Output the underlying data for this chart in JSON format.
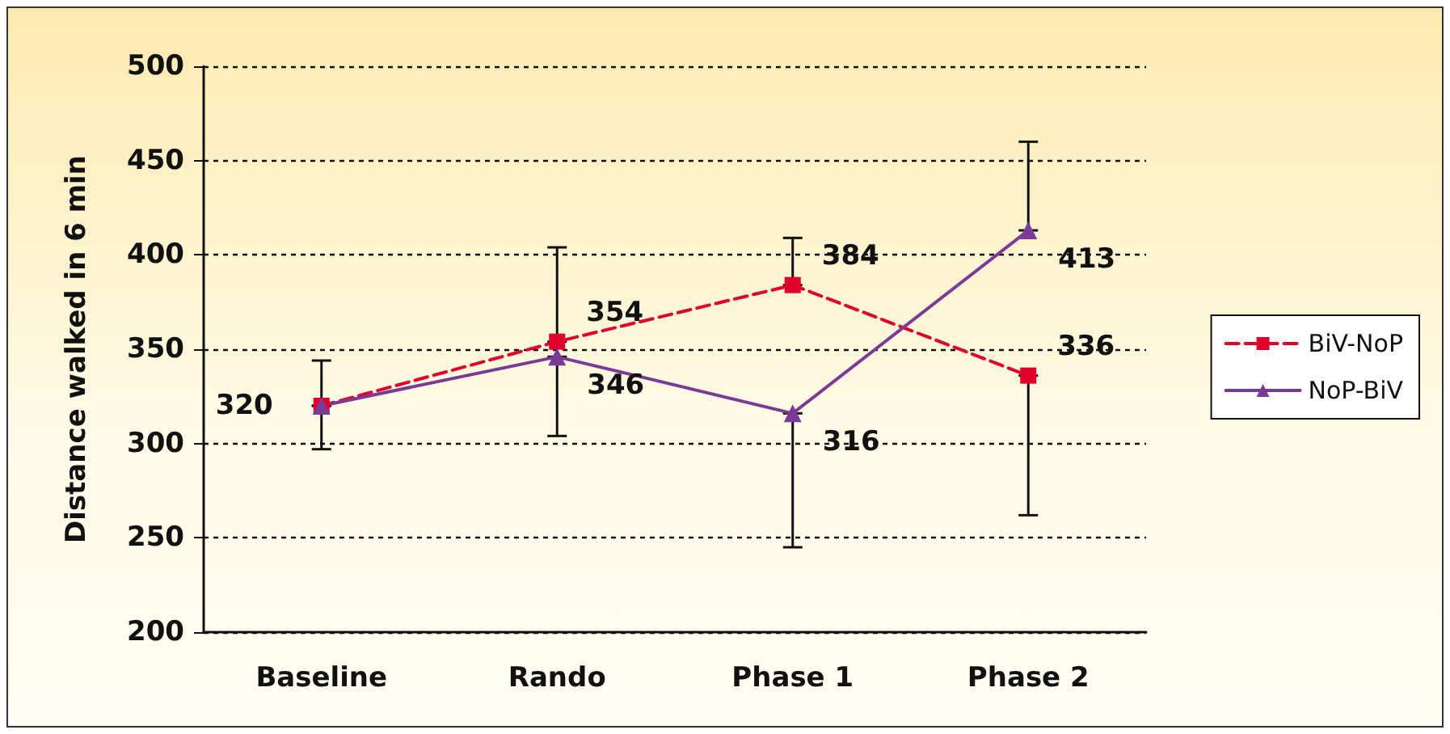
{
  "chart_data": {
    "type": "line",
    "ylabel": "Distance walked in 6 min",
    "categories": [
      "Baseline",
      "Rando",
      "Phase 1",
      "Phase 2"
    ],
    "series": [
      {
        "name": "BiV-NoP",
        "color": "#e0002a",
        "values": [
          320,
          354,
          384,
          336
        ],
        "value_labels": [
          "320",
          "354",
          "384",
          "336"
        ],
        "errors": [
          [
            320,
            344
          ],
          [
            354,
            404
          ],
          [
            384,
            409
          ],
          [
            262,
            336
          ]
        ],
        "marker": "square",
        "line_style": "dashed"
      },
      {
        "name": "NoP-BiV",
        "color": "#7b3a96",
        "values": [
          320,
          346,
          316,
          413
        ],
        "value_labels": [
          null,
          "346",
          "316",
          "413"
        ],
        "errors": [
          [
            297,
            320
          ],
          [
            304,
            346
          ],
          [
            245,
            316
          ],
          [
            413,
            460
          ]
        ],
        "marker": "triangle",
        "line_style": "solid"
      }
    ],
    "ylim": [
      200,
      500
    ],
    "yticks": [
      200,
      250,
      300,
      350,
      400,
      450,
      500
    ],
    "grid": "y",
    "legend": "right"
  }
}
